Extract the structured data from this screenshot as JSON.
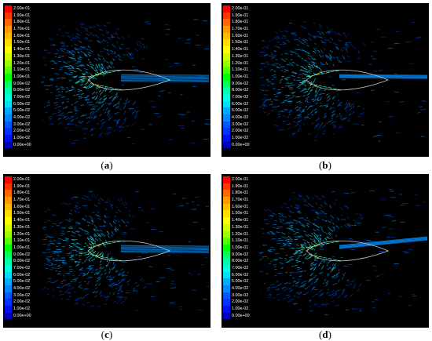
{
  "colorbar_labels": [
    "2.00e-01",
    "1.90e-01",
    "1.80e-01",
    "1.70e-01",
    "1.60e-01",
    "1.50e-01",
    "1.40e-01",
    "1.30e-01",
    "1.20e-01",
    "1.10e-01",
    "1.00e-01",
    "9.00e-02",
    "8.00e-02",
    "7.00e-02",
    "6.00e-02",
    "5.00e-02",
    "4.00e-02",
    "3.00e-02",
    "2.00e-02",
    "1.00e-02",
    "0.00e+00"
  ],
  "colorbar_colors": [
    "#ff0000",
    "#ff3300",
    "#ff6600",
    "#ff9900",
    "#ffbb00",
    "#ffdd00",
    "#ffff00",
    "#ccff00",
    "#99ff00",
    "#55ff00",
    "#00ff00",
    "#00ff66",
    "#00ffaa",
    "#00ffdd",
    "#00ddff",
    "#00aaff",
    "#0088ff",
    "#0055ff",
    "#0033ff",
    "#0011ee",
    "#0000bb"
  ],
  "panels": [
    {
      "letter": "a"
    },
    {
      "letter": "b"
    },
    {
      "letter": "c"
    },
    {
      "letter": "d"
    }
  ]
}
